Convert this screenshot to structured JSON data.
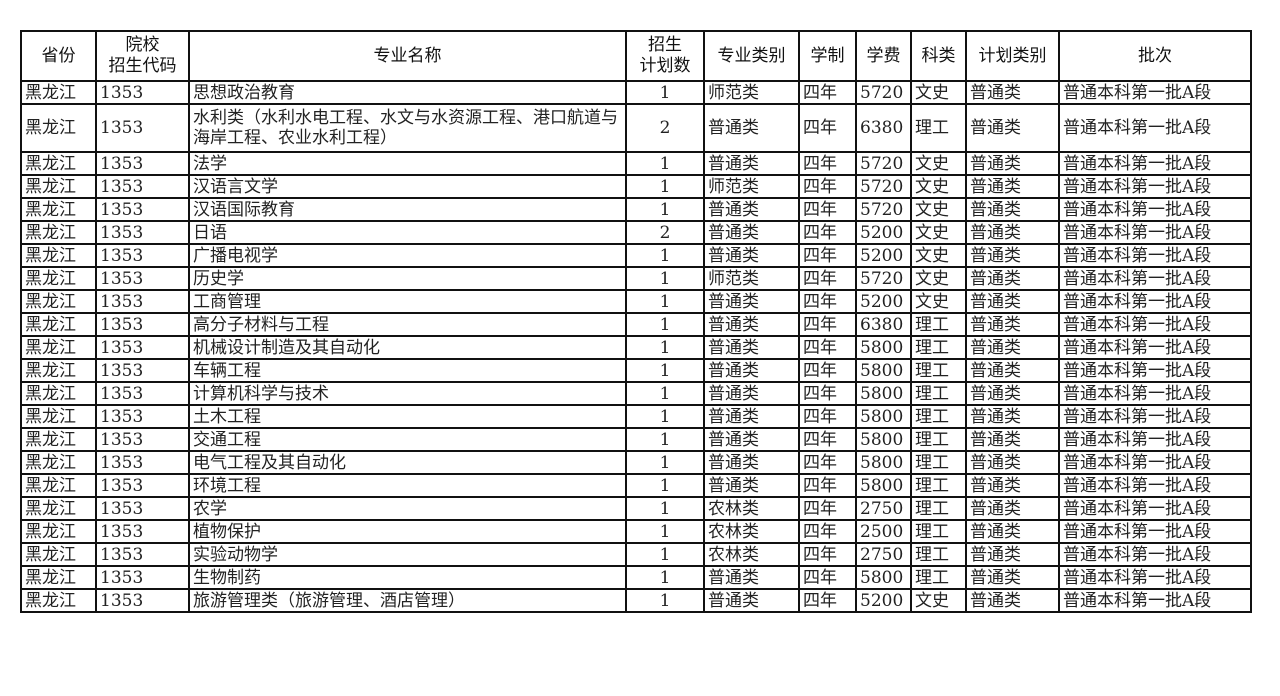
{
  "headers": [
    "省份",
    "院校\n招生代码",
    "专业名称",
    "招生\n计划数",
    "专业类别",
    "学制",
    "学费",
    "科类",
    "计划类别",
    "批次"
  ],
  "rows": [
    [
      "黑龙江",
      "1353",
      "思想政治教育",
      "1",
      "师范类",
      "四年",
      "5720",
      "文史",
      "普通类",
      "普通本科第一批A段"
    ],
    [
      "黑龙江",
      "1353",
      "水利类（水利水电工程、水文与水资源工程、港口航道与海岸工程、农业水利工程）",
      "2",
      "普通类",
      "四年",
      "6380",
      "理工",
      "普通类",
      "普通本科第一批A段"
    ],
    [
      "黑龙江",
      "1353",
      "法学",
      "1",
      "普通类",
      "四年",
      "5720",
      "文史",
      "普通类",
      "普通本科第一批A段"
    ],
    [
      "黑龙江",
      "1353",
      "汉语言文学",
      "1",
      "师范类",
      "四年",
      "5720",
      "文史",
      "普通类",
      "普通本科第一批A段"
    ],
    [
      "黑龙江",
      "1353",
      "汉语国际教育",
      "1",
      "普通类",
      "四年",
      "5720",
      "文史",
      "普通类",
      "普通本科第一批A段"
    ],
    [
      "黑龙江",
      "1353",
      "日语",
      "2",
      "普通类",
      "四年",
      "5200",
      "文史",
      "普通类",
      "普通本科第一批A段"
    ],
    [
      "黑龙江",
      "1353",
      "广播电视学",
      "1",
      "普通类",
      "四年",
      "5200",
      "文史",
      "普通类",
      "普通本科第一批A段"
    ],
    [
      "黑龙江",
      "1353",
      "历史学",
      "1",
      "师范类",
      "四年",
      "5720",
      "文史",
      "普通类",
      "普通本科第一批A段"
    ],
    [
      "黑龙江",
      "1353",
      "工商管理",
      "1",
      "普通类",
      "四年",
      "5200",
      "文史",
      "普通类",
      "普通本科第一批A段"
    ],
    [
      "黑龙江",
      "1353",
      "高分子材料与工程",
      "1",
      "普通类",
      "四年",
      "6380",
      "理工",
      "普通类",
      "普通本科第一批A段"
    ],
    [
      "黑龙江",
      "1353",
      "机械设计制造及其自动化",
      "1",
      "普通类",
      "四年",
      "5800",
      "理工",
      "普通类",
      "普通本科第一批A段"
    ],
    [
      "黑龙江",
      "1353",
      "车辆工程",
      "1",
      "普通类",
      "四年",
      "5800",
      "理工",
      "普通类",
      "普通本科第一批A段"
    ],
    [
      "黑龙江",
      "1353",
      "计算机科学与技术",
      "1",
      "普通类",
      "四年",
      "5800",
      "理工",
      "普通类",
      "普通本科第一批A段"
    ],
    [
      "黑龙江",
      "1353",
      "土木工程",
      "1",
      "普通类",
      "四年",
      "5800",
      "理工",
      "普通类",
      "普通本科第一批A段"
    ],
    [
      "黑龙江",
      "1353",
      "交通工程",
      "1",
      "普通类",
      "四年",
      "5800",
      "理工",
      "普通类",
      "普通本科第一批A段"
    ],
    [
      "黑龙江",
      "1353",
      "电气工程及其自动化",
      "1",
      "普通类",
      "四年",
      "5800",
      "理工",
      "普通类",
      "普通本科第一批A段"
    ],
    [
      "黑龙江",
      "1353",
      "环境工程",
      "1",
      "普通类",
      "四年",
      "5800",
      "理工",
      "普通类",
      "普通本科第一批A段"
    ],
    [
      "黑龙江",
      "1353",
      "农学",
      "1",
      "农林类",
      "四年",
      "2750",
      "理工",
      "普通类",
      "普通本科第一批A段"
    ],
    [
      "黑龙江",
      "1353",
      "植物保护",
      "1",
      "农林类",
      "四年",
      "2500",
      "理工",
      "普通类",
      "普通本科第一批A段"
    ],
    [
      "黑龙江",
      "1353",
      "实验动物学",
      "1",
      "农林类",
      "四年",
      "2750",
      "理工",
      "普通类",
      "普通本科第一批A段"
    ],
    [
      "黑龙江",
      "1353",
      "生物制药",
      "1",
      "普通类",
      "四年",
      "5800",
      "理工",
      "普通类",
      "普通本科第一批A段"
    ],
    [
      "黑龙江",
      "1353",
      "旅游管理类（旅游管理、酒店管理）",
      "1",
      "普通类",
      "四年",
      "5200",
      "文史",
      "普通类",
      "普通本科第一批A段"
    ]
  ]
}
